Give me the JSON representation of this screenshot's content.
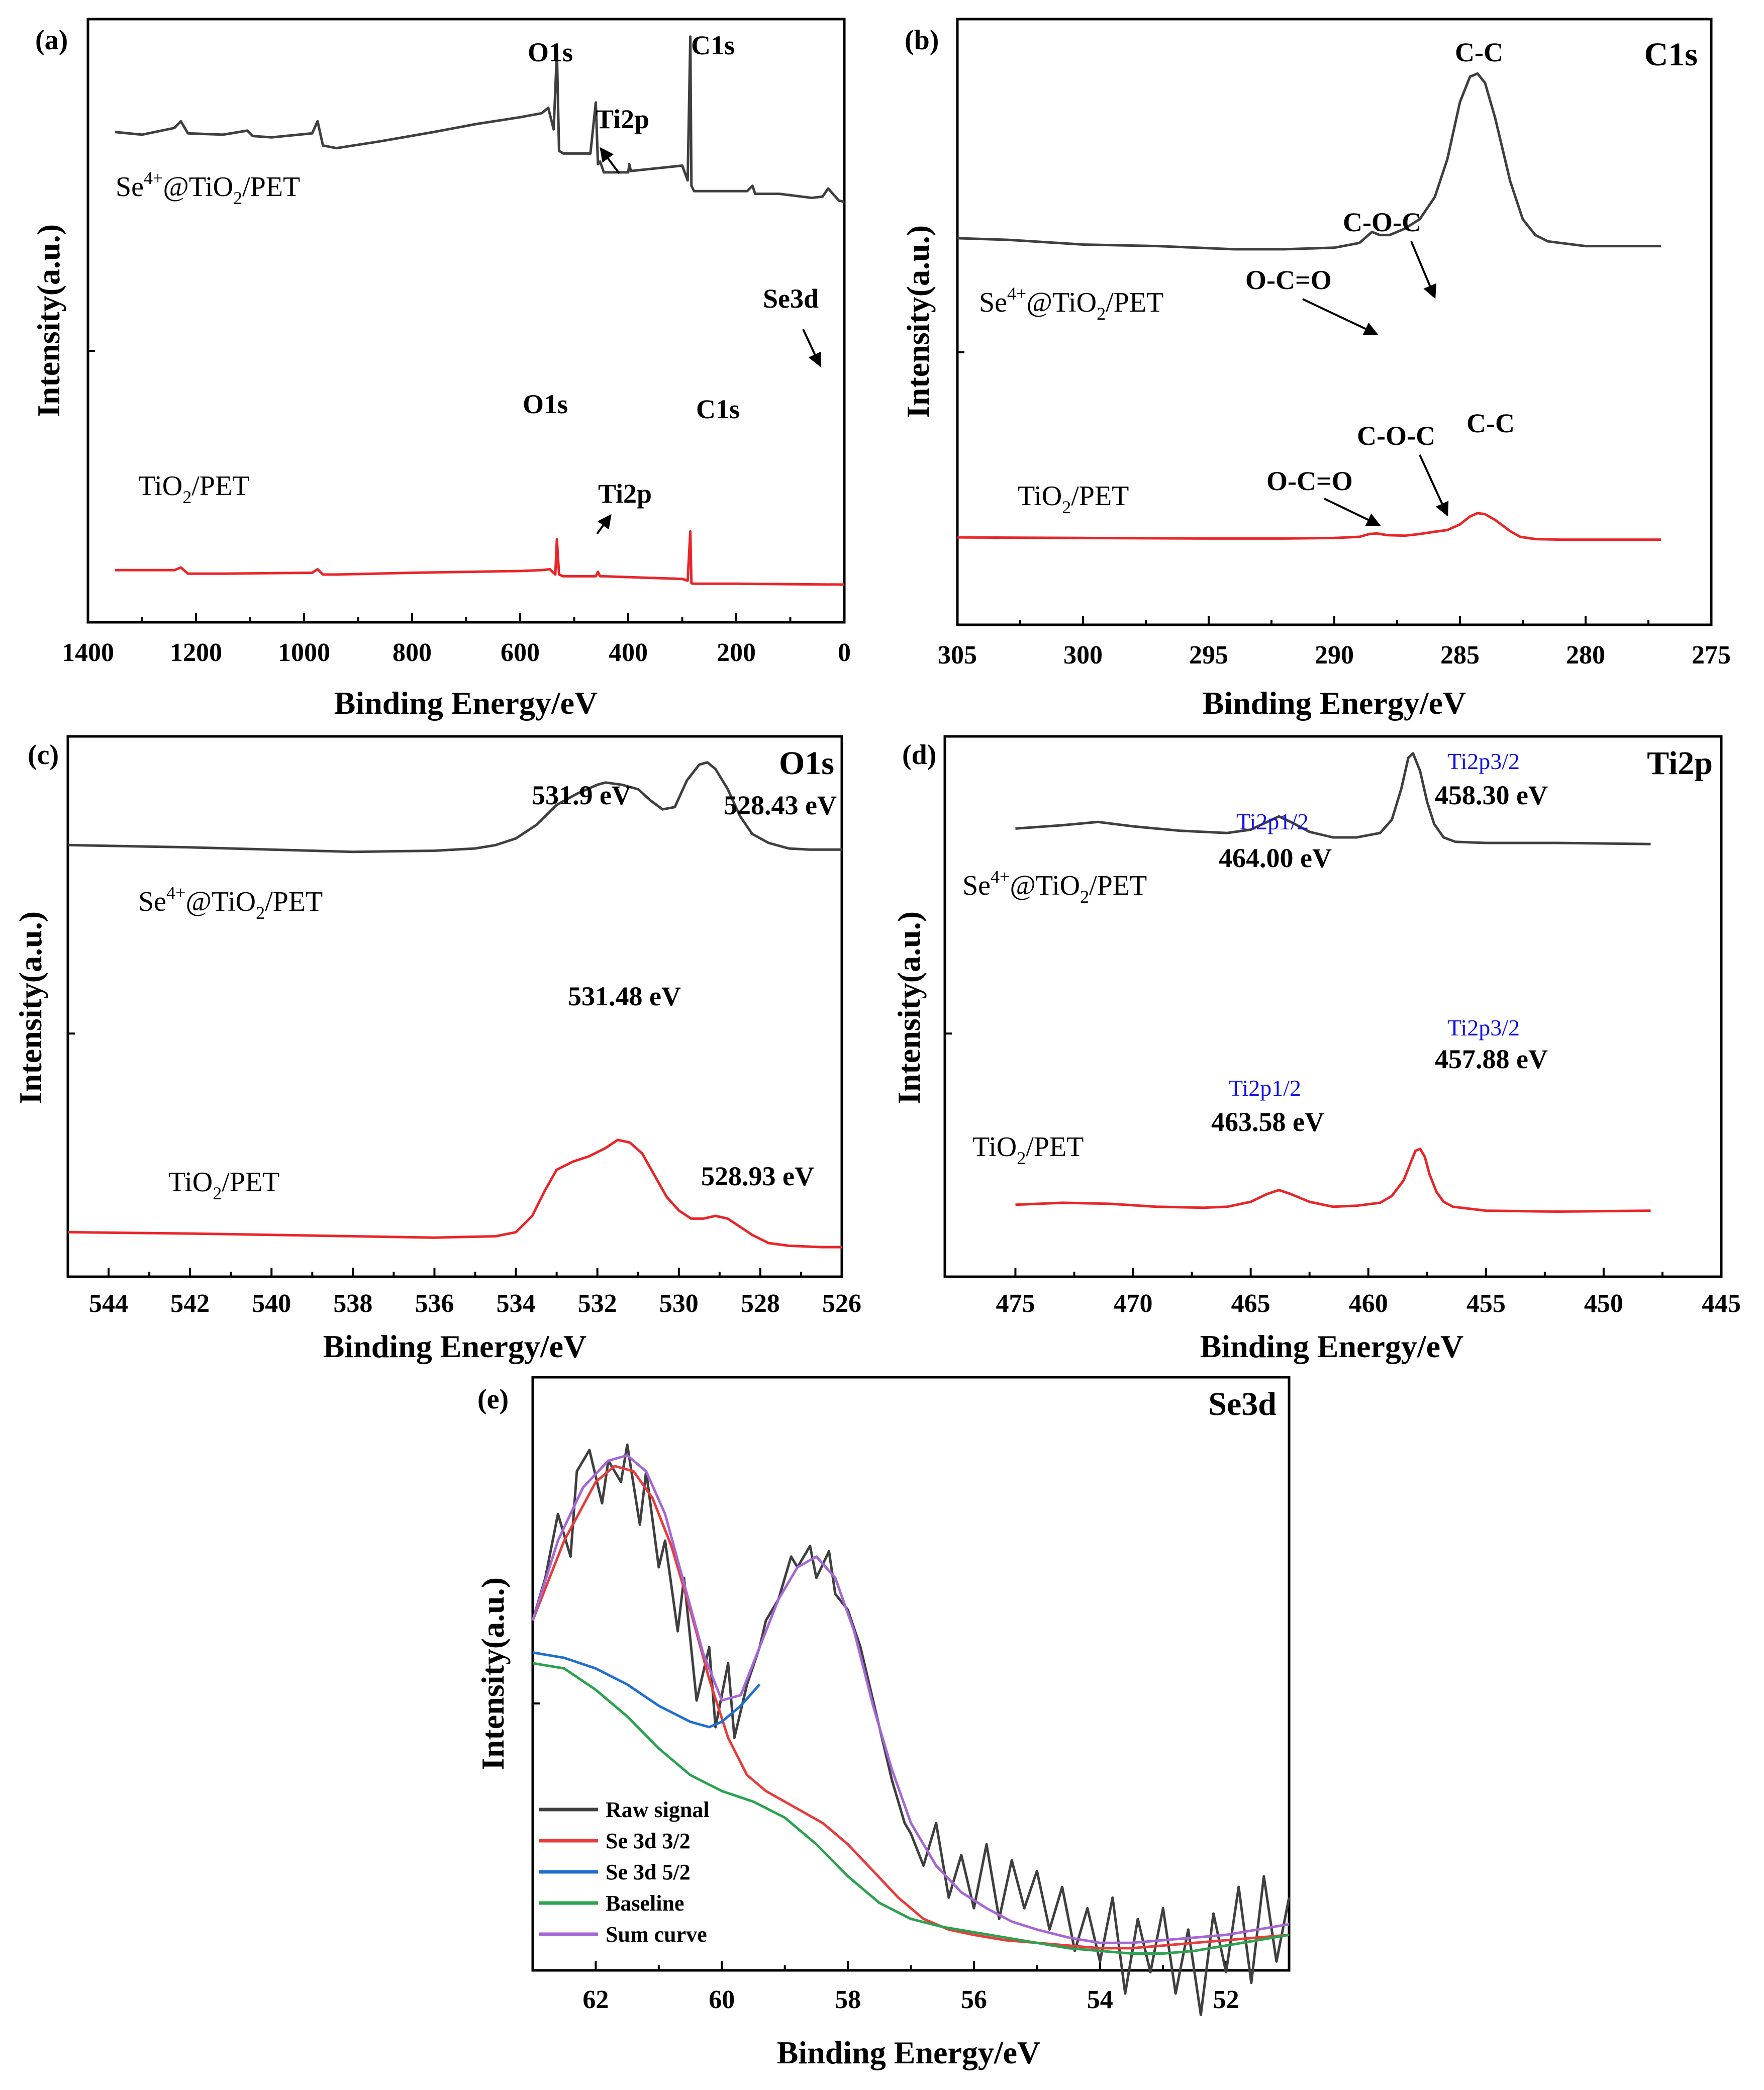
{
  "colors": {
    "dark": "#3f3f3f",
    "red": "#e8262a",
    "se32": "#e83c3c",
    "se52": "#1f6fd1",
    "baseline": "#2aa24e",
    "sum": "#a567d6",
    "blue_text": "#1010ee"
  },
  "chart_data": [
    {
      "panel": "(a)",
      "type": "line",
      "title": "",
      "xlabel": "Binding Energy/eV",
      "ylabel": "Intensity(a.u.)",
      "xlim": [
        1400,
        0
      ],
      "ylim": [
        0,
        100
      ],
      "xticks": [
        "1400",
        "1200",
        "1000",
        "800",
        "600",
        "400",
        "200",
        "0"
      ],
      "series": [
        {
          "name": "Se4+@TiO2/PET",
          "color": "#3f3f3f",
          "x": [
            1350,
            1300,
            1240,
            1228,
            1215,
            1150,
            1105,
            1095,
            1060,
            985,
            975,
            965,
            940,
            860,
            760,
            680,
            600,
            560,
            548,
            538,
            532,
            528,
            520,
            470,
            460,
            456,
            452,
            445,
            400,
            398,
            395,
            300,
            290,
            285,
            283,
            278,
            270,
            180,
            170,
            165,
            120,
            60,
            40,
            30,
            10,
            0
          ],
          "y": [
            64,
            63,
            65.5,
            68,
            63.5,
            63,
            64.5,
            62.5,
            62,
            63.5,
            68,
            59,
            58,
            60.5,
            64,
            67,
            69.5,
            71,
            73,
            65,
            94,
            57,
            56,
            56,
            75,
            52,
            53,
            49,
            49,
            52,
            49.5,
            51.5,
            46,
            99.5,
            44,
            42,
            42,
            42,
            44,
            41,
            41,
            39.5,
            40,
            43,
            38.5,
            38
          ]
        },
        {
          "name": "TiO2/PET",
          "color": "#e8262a",
          "x": [
            1350,
            1240,
            1228,
            1215,
            1150,
            985,
            975,
            965,
            940,
            800,
            700,
            600,
            560,
            545,
            535,
            532,
            528,
            520,
            460,
            456,
            452,
            445,
            300,
            290,
            285,
            283,
            278,
            200,
            100,
            0
          ],
          "y": [
            14.5,
            14.5,
            16,
            12.5,
            12.5,
            13,
            15,
            12,
            12,
            13,
            13.5,
            14,
            14.5,
            15,
            12,
            32,
            12,
            11,
            11,
            13.5,
            11,
            11,
            9.5,
            8.5,
            36.5,
            7,
            6.8,
            6.8,
            6.5,
            6.3
          ]
        }
      ],
      "annotations": {
        "se_o1s": "O1s",
        "se_ti2p": "Ti2p",
        "se_c1s": "C1s",
        "se_se3d": "Se3d",
        "ti_o1s": "O1s",
        "ti_ti2p": "Ti2p",
        "ti_c1s": "C1s"
      },
      "legend": [
        "Se4+@TiO2/PET",
        "TiO2/PET"
      ]
    },
    {
      "panel": "(b)",
      "type": "line",
      "title": "C1s",
      "xlabel": "Binding Energy/eV",
      "ylabel": "Intensity(a.u.)",
      "xlim": [
        305,
        275
      ],
      "ylim": [
        0,
        100
      ],
      "xticks": [
        "305",
        "300",
        "295",
        "290",
        "285",
        "280",
        "275"
      ],
      "series": [
        {
          "name": "Se4+@TiO2/PET",
          "color": "#3f3f3f",
          "x": [
            305,
            303,
            300,
            297,
            294,
            292,
            290,
            289,
            288.5,
            288.2,
            287.8,
            287.2,
            286.6,
            286,
            285.5,
            285,
            284.6,
            284.3,
            284,
            283.6,
            283,
            282.5,
            282,
            281.5,
            280,
            278,
            277
          ],
          "y": [
            47,
            46.5,
            45,
            44.5,
            43.5,
            43.5,
            44,
            45.5,
            49,
            48,
            48,
            50,
            53,
            60,
            72,
            90,
            98,
            99,
            96,
            85,
            65,
            53,
            48,
            46,
            44.5,
            44.5,
            44.5
          ]
        },
        {
          "name": "TiO2/PET",
          "color": "#e8262a",
          "x": [
            305,
            300,
            295,
            292,
            290,
            289,
            288.6,
            288.3,
            287.9,
            287.2,
            286.6,
            286,
            285.5,
            285,
            284.6,
            284.3,
            284,
            283.6,
            283,
            282.6,
            282,
            281,
            279,
            277
          ],
          "y": [
            11.5,
            11,
            10.5,
            10.5,
            11,
            12,
            14.5,
            15,
            13.5,
            13,
            14.5,
            16.5,
            18,
            23,
            30,
            33,
            32,
            27,
            17,
            12,
            10,
            9.5,
            9.5,
            9.5
          ]
        }
      ],
      "annotations": {
        "se_cc": "C-C",
        "se_coc": "C-O-C",
        "se_oco": "O-C=O",
        "ti_cc": "C-C",
        "ti_coc": "C-O-C",
        "ti_oco": "O-C=O"
      },
      "legend": [
        "Se4+@TiO2/PET",
        "TiO2/PET"
      ]
    },
    {
      "panel": "(c)",
      "type": "line",
      "title": "O1s",
      "xlabel": "Binding Energy/eV",
      "ylabel": "Intensity(a.u.)",
      "xlim": [
        545,
        526
      ],
      "ylim": [
        0,
        100
      ],
      "xticks": [
        "544",
        "542",
        "540",
        "538",
        "536",
        "534",
        "532",
        "530",
        "528",
        "526"
      ],
      "series": [
        {
          "name": "Se4+@TiO2/PET",
          "color": "#3f3f3f",
          "x": [
            545,
            542,
            540,
            538,
            536,
            535,
            534.5,
            534,
            533.5,
            533,
            532.5,
            532,
            531.8,
            531.4,
            531,
            530.7,
            530.4,
            530.1,
            529.8,
            529.5,
            529.3,
            529.1,
            528.8,
            528.5,
            528.2,
            527.8,
            527.3,
            526.8,
            526
          ],
          "y": [
            57,
            56,
            55,
            54,
            54.5,
            55.5,
            57,
            60,
            66,
            75,
            80,
            84,
            85,
            84,
            82,
            77,
            73,
            74,
            86,
            93,
            94,
            91,
            82,
            70,
            62,
            58,
            55.5,
            55,
            55
          ]
        },
        {
          "name": "TiO2/PET",
          "color": "#e8262a",
          "x": [
            545,
            542,
            540,
            538,
            536,
            534.5,
            534,
            533.6,
            533.3,
            533,
            532.6,
            532.2,
            531.8,
            531.5,
            531.2,
            530.9,
            530.6,
            530.3,
            530,
            529.7,
            529.4,
            529.1,
            528.8,
            528.5,
            528.2,
            527.8,
            527.3,
            526.5,
            526
          ],
          "y": [
            9,
            8.5,
            8,
            7.5,
            7,
            7.5,
            9,
            15,
            24,
            32,
            35,
            37,
            40,
            43,
            42,
            38,
            30,
            22,
            17,
            14,
            14,
            15,
            14,
            11,
            8,
            5,
            4,
            3.5,
            3.5
          ]
        }
      ],
      "annotations": {
        "se_p1": "531.9 eV",
        "se_p2": "528.43 eV",
        "ti_p1": "531.48 eV",
        "ti_p2": "528.93 eV"
      },
      "legend": [
        "Se4+@TiO2/PET",
        "TiO2/PET"
      ]
    },
    {
      "panel": "(d)",
      "type": "line",
      "title": "Ti2p",
      "xlabel": "Binding Energy/eV",
      "ylabel": "Intensity(a.u.)",
      "xlim": [
        478,
        445
      ],
      "ylim": [
        0,
        100
      ],
      "xticks": [
        "475",
        "470",
        "465",
        "460",
        "455",
        "450",
        "445"
      ],
      "series": [
        {
          "name": "Se4+@TiO2/PET",
          "color": "#3f3f3f",
          "x": [
            475,
            473,
            471.5,
            470,
            468,
            466,
            465,
            464.3,
            463.8,
            463.3,
            462.5,
            461.5,
            460.5,
            459.5,
            459,
            458.6,
            458.3,
            458.1,
            457.8,
            457.5,
            457.2,
            456.8,
            456.3,
            455,
            452,
            448
          ],
          "y": [
            64,
            65.5,
            67,
            65,
            63,
            62,
            63.5,
            67,
            69.5,
            67,
            62.5,
            60,
            60,
            62,
            68,
            82,
            96,
            98,
            90,
            76,
            66,
            60,
            58,
            57.5,
            57.5,
            57
          ]
        },
        {
          "name": "TiO2/PET",
          "color": "#e8262a",
          "x": [
            475,
            473,
            471,
            469,
            467,
            466,
            465,
            464.3,
            463.8,
            463.3,
            462.5,
            461.5,
            460.5,
            459.5,
            459,
            458.5,
            458.2,
            458,
            457.8,
            457.6,
            457.4,
            457.1,
            456.8,
            456.4,
            455,
            452,
            448
          ],
          "y": [
            8.5,
            9.5,
            9,
            7.5,
            7,
            7.5,
            10,
            14,
            16,
            14,
            10,
            7.5,
            8,
            9.5,
            13,
            21,
            30,
            36,
            37,
            33,
            24,
            15,
            10,
            7.5,
            5.5,
            5,
            5.5
          ]
        }
      ],
      "annotations": {
        "se_p12_blue": "Ti2p1/2",
        "se_p12": "464.00 eV",
        "se_p32_blue": "Ti2p3/2",
        "se_p32": "458.30 eV",
        "ti_p12_blue": "Ti2p1/2",
        "ti_p12": "463.58 eV",
        "ti_p32_blue": "Ti2p3/2",
        "ti_p32": "457.88 eV"
      },
      "legend": [
        "Se4+@TiO2/PET",
        "TiO2/PET"
      ]
    },
    {
      "panel": "(e)",
      "type": "line",
      "title": "Se3d",
      "xlabel": "Binding Energy/eV",
      "ylabel": "Intensity(a.u.)",
      "xlim": [
        63,
        51
      ],
      "ylim": [
        0,
        100
      ],
      "xticks": [
        "62",
        "60",
        "58",
        "56",
        "54",
        "52"
      ],
      "series": [
        {
          "name": "Raw signal",
          "color": "#3f3f3f",
          "x": [
            63,
            62.8,
            62.6,
            62.4,
            62.3,
            62.1,
            61.9,
            61.8,
            61.6,
            61.5,
            61.3,
            61.2,
            61.0,
            60.9,
            60.7,
            60.6,
            60.4,
            60.2,
            60.1,
            59.9,
            59.8,
            59.6,
            59.4,
            59.3,
            59.1,
            58.9,
            58.8,
            58.6,
            58.5,
            58.3,
            58.2,
            58.0,
            57.8,
            57.7,
            57.5,
            57.3,
            57.1,
            57.0,
            56.8,
            56.6,
            56.4,
            56.2,
            56.0,
            55.8,
            55.6,
            55.4,
            55.2,
            55.0,
            54.8,
            54.6,
            54.4,
            54.2,
            54.0,
            53.8,
            53.6,
            53.4,
            53.2,
            53.0,
            52.8,
            52.6,
            52.4,
            52.2,
            52.0,
            51.8,
            51.6,
            51.4,
            51.2,
            51.0
          ],
          "y": [
            60,
            68,
            80,
            72,
            88,
            92,
            82,
            90,
            86,
            93,
            78,
            88,
            70,
            75,
            58,
            68,
            45,
            55,
            40,
            52,
            38,
            48,
            55,
            60,
            64,
            72,
            70,
            74,
            68,
            73,
            65,
            62,
            55,
            50,
            40,
            30,
            22,
            20,
            14,
            22,
            8,
            16,
            6,
            18,
            4,
            15,
            6,
            13,
            2,
            10,
            -2,
            6,
            -4,
            8,
            -10,
            4,
            -6,
            6,
            -10,
            2,
            -14,
            5,
            -6,
            10,
            -8,
            12,
            -4,
            8
          ]
        },
        {
          "name": "Se 3d 3/2",
          "color": "#e83c3c",
          "x": [
            63,
            62.5,
            62,
            61.7,
            61.4,
            61.1,
            60.8,
            60.5,
            60.2,
            59.9,
            59.6,
            59.3,
            59.0,
            58.7,
            58.4,
            58.0,
            57.6,
            57.2,
            56.8,
            56.4,
            56.0,
            55.5,
            55.0,
            54.5,
            54.0,
            53.5,
            53.0,
            52.5,
            52.0,
            51.5,
            51.0
          ],
          "y": [
            60,
            75,
            86,
            89,
            88,
            83,
            74,
            62,
            49,
            38,
            31,
            28,
            26,
            24,
            22,
            18,
            13,
            8,
            4,
            2,
            1,
            0,
            -0.5,
            -1,
            -1.5,
            -1.5,
            -1,
            -0.5,
            0,
            0.5,
            1
          ]
        },
        {
          "name": "Se 3d 5/2",
          "color": "#1f6fd1",
          "x": [
            63,
            62.5,
            62,
            61.5,
            61,
            60.5,
            60.2,
            60,
            59.7,
            59.4
          ],
          "y": [
            54,
            53,
            51,
            48,
            44,
            41,
            40,
            41,
            44,
            48
          ]
        },
        {
          "name": "Baseline",
          "color": "#2aa24e",
          "x": [
            63,
            62.5,
            62,
            61.5,
            61,
            60.5,
            60,
            59.5,
            59,
            58.5,
            58,
            57.5,
            57,
            56.5,
            56,
            55.5,
            55,
            54.5,
            54,
            53.5,
            53,
            52.5,
            52,
            51.5,
            51
          ],
          "y": [
            52,
            51,
            47,
            42,
            36,
            31,
            28,
            26,
            23,
            18,
            12,
            7,
            4,
            2.5,
            1.5,
            0.5,
            -0.5,
            -1.5,
            -2,
            -2.5,
            -2.5,
            -2,
            -1,
            0,
            1
          ]
        },
        {
          "name": "Sum curve",
          "color": "#a567d6",
          "x": [
            63,
            62.6,
            62.2,
            61.8,
            61.5,
            61.2,
            60.9,
            60.6,
            60.3,
            60.0,
            59.7,
            59.4,
            59.1,
            58.8,
            58.5,
            58.2,
            57.9,
            57.6,
            57.3,
            57.0,
            56.6,
            56.2,
            55.8,
            55.4,
            55.0,
            54.5,
            54.0,
            53.5,
            53.0,
            52.5,
            52.0,
            51.5,
            51.0
          ],
          "y": [
            60,
            75,
            85,
            90,
            91,
            88,
            80,
            67,
            54,
            45,
            46,
            55,
            64,
            70,
            72,
            68,
            58,
            44,
            32,
            22,
            14,
            9,
            6,
            3.5,
            2,
            0.5,
            -0.5,
            -0.5,
            0,
            0.5,
            1,
            2,
            3
          ]
        }
      ],
      "legend": [
        "Raw signal",
        "Se 3d 3/2",
        "Se 3d 5/2",
        "Baseline",
        "Sum curve"
      ]
    }
  ]
}
